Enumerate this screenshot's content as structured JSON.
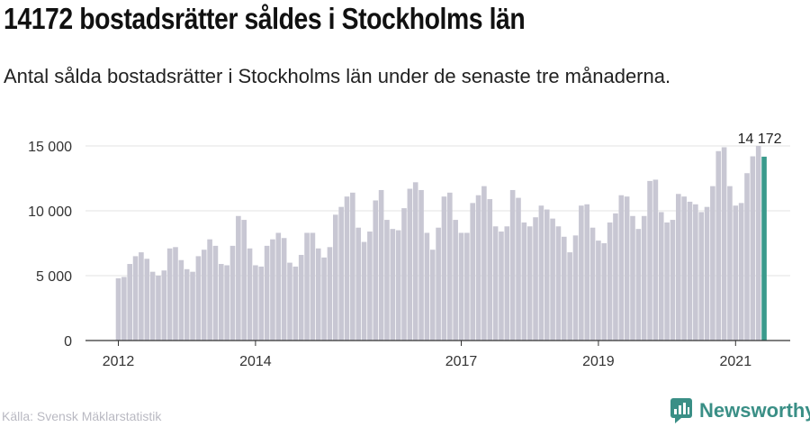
{
  "title": "14172 bostadsrätter såldes i Stockholms län",
  "subtitle": "Antal sålda bostadsrätter i Stockholms län under de senaste tre månaderna.",
  "source": "Källa: Svensk Mäklarstatistik",
  "brand": {
    "name": "Newsworthy",
    "icon": "newsworthy-logo-icon",
    "color": "#3a8f86"
  },
  "colors": {
    "bar": "#c8c7d3",
    "highlight": "#3a9a8c",
    "grid": "#e3e3e3",
    "axis": "#333333"
  },
  "chart_data": {
    "type": "bar",
    "ylim": [
      0,
      15000
    ],
    "yticks": [
      0,
      5000,
      10000,
      15000
    ],
    "ytick_labels": [
      "0",
      "5 000",
      "10 000",
      "15 000"
    ],
    "xticks": [
      {
        "label": "2012",
        "index": 0
      },
      {
        "label": "2014",
        "index": 24
      },
      {
        "label": "2017",
        "index": 60
      },
      {
        "label": "2019",
        "index": 84
      },
      {
        "label": "2021",
        "index": 108
      }
    ],
    "values": [
      4800,
      4900,
      5900,
      6500,
      6800,
      6300,
      5300,
      5000,
      5400,
      7100,
      7200,
      6200,
      5500,
      5300,
      6500,
      7000,
      7800,
      7300,
      5900,
      5800,
      7300,
      9600,
      9300,
      7100,
      5800,
      5700,
      7300,
      7800,
      8300,
      7900,
      6000,
      5700,
      6600,
      8300,
      8300,
      7100,
      6400,
      7200,
      9700,
      10300,
      11100,
      11400,
      8700,
      7600,
      8400,
      10800,
      11600,
      9300,
      8600,
      8500,
      10200,
      11700,
      12200,
      11600,
      8300,
      7000,
      8700,
      11100,
      11400,
      9300,
      8300,
      8300,
      10600,
      11200,
      11900,
      10900,
      8800,
      8400,
      8800,
      11600,
      11000,
      9100,
      8800,
      9500,
      10400,
      10100,
      9400,
      8800,
      8000,
      6800,
      8100,
      10400,
      10500,
      8700,
      7700,
      7500,
      9100,
      9800,
      11200,
      11100,
      9600,
      8600,
      9600,
      12300,
      12400,
      9900,
      9100,
      9300,
      11300,
      11100,
      10700,
      10500,
      9900,
      10300,
      11900,
      14600,
      14900,
      11900,
      10400,
      10600,
      12900,
      14200,
      15000,
      14172
    ],
    "highlight": {
      "index": 113,
      "value": 14172,
      "label": "14 172"
    }
  }
}
